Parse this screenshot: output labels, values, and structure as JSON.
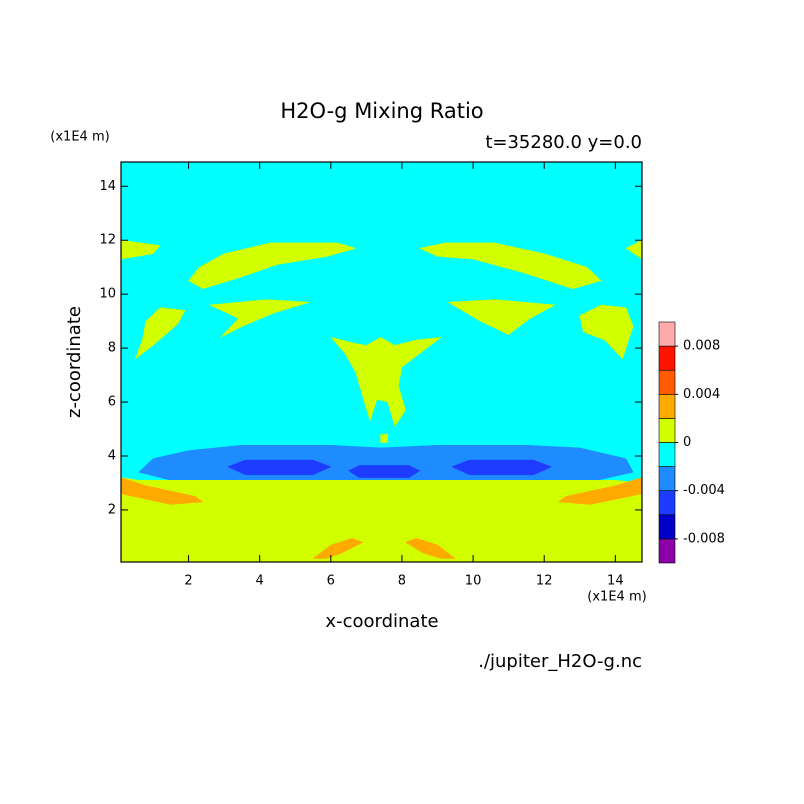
{
  "chart_data": {
    "type": "contour",
    "title": "H2O-g Mixing Ratio",
    "subtitle": "t=35280.0 y=0.0",
    "x_label": "x-coordinate",
    "y_label": "z-coordinate",
    "x_unit": "(x1E4 m)",
    "y_unit": "(x1E4 m)",
    "source": "./jupiter_H2O-g.nc",
    "xlim": [
      0.1,
      14.75
    ],
    "ylim": [
      0.07,
      14.9
    ],
    "xticks": [
      2,
      4,
      6,
      8,
      10,
      12,
      14
    ],
    "yticks": [
      2,
      4,
      6,
      8,
      10,
      12,
      14
    ],
    "levels": [
      -0.01,
      -0.008,
      -0.006,
      -0.004,
      -0.002,
      0,
      0.002,
      0.004,
      0.006,
      0.008,
      0.01
    ],
    "colors": [
      "#8c00a8",
      "#0000c8",
      "#1e3cff",
      "#1e8cff",
      "#00ffff",
      "#d2ff00",
      "#ffaa00",
      "#ff5a00",
      "#ff1400",
      "#ffaaaa"
    ],
    "colorbar_ticks": [
      0.008,
      0.004,
      0,
      -0.004,
      -0.008
    ],
    "regions": [
      {
        "level": -0.002,
        "points": [
          [
            0.1,
            0.07
          ],
          [
            14.75,
            0.07
          ],
          [
            14.75,
            14.9
          ],
          [
            0.1,
            14.9
          ]
        ]
      },
      {
        "level": -0.004,
        "points": [
          [
            0.6,
            3.4
          ],
          [
            1.0,
            3.9
          ],
          [
            2.0,
            4.2
          ],
          [
            3.5,
            4.4
          ],
          [
            6.0,
            4.4
          ],
          [
            7.4,
            4.3
          ],
          [
            9.0,
            4.4
          ],
          [
            11.5,
            4.4
          ],
          [
            13.0,
            4.3
          ],
          [
            14.3,
            3.9
          ],
          [
            14.5,
            3.4
          ],
          [
            13.5,
            3.1
          ],
          [
            11.0,
            3.0
          ],
          [
            9.0,
            3.0
          ],
          [
            7.4,
            2.9
          ],
          [
            6.0,
            3.0
          ],
          [
            3.0,
            3.0
          ],
          [
            1.5,
            3.1
          ]
        ]
      },
      {
        "level": -0.006,
        "points": [
          [
            3.1,
            3.6
          ],
          [
            3.6,
            3.85
          ],
          [
            5.5,
            3.85
          ],
          [
            6.0,
            3.6
          ],
          [
            5.5,
            3.3
          ],
          [
            3.6,
            3.3
          ]
        ]
      },
      {
        "level": -0.006,
        "points": [
          [
            9.4,
            3.6
          ],
          [
            9.9,
            3.85
          ],
          [
            11.7,
            3.85
          ],
          [
            12.2,
            3.6
          ],
          [
            11.7,
            3.3
          ],
          [
            9.9,
            3.3
          ]
        ]
      },
      {
        "level": -0.006,
        "points": [
          [
            6.5,
            3.45
          ],
          [
            6.8,
            3.65
          ],
          [
            8.2,
            3.65
          ],
          [
            8.5,
            3.45
          ],
          [
            8.2,
            3.2
          ],
          [
            6.8,
            3.2
          ]
        ]
      },
      {
        "level": 0,
        "points": [
          [
            0.1,
            0.07
          ],
          [
            14.75,
            0.07
          ],
          [
            14.75,
            3.0
          ],
          [
            14.0,
            3.1
          ],
          [
            0.6,
            3.1
          ],
          [
            0.1,
            3.2
          ]
        ]
      },
      {
        "level": 0.002,
        "points": [
          [
            0.1,
            3.2
          ],
          [
            0.8,
            2.9
          ],
          [
            2.2,
            2.5
          ],
          [
            2.4,
            2.3
          ],
          [
            1.5,
            2.2
          ],
          [
            0.1,
            2.6
          ]
        ]
      },
      {
        "level": 0.002,
        "points": [
          [
            14.75,
            3.2
          ],
          [
            14.0,
            2.9
          ],
          [
            12.6,
            2.5
          ],
          [
            12.4,
            2.3
          ],
          [
            13.3,
            2.2
          ],
          [
            14.75,
            2.6
          ]
        ]
      },
      {
        "level": 0.002,
        "points": [
          [
            5.5,
            0.2
          ],
          [
            6.0,
            0.7
          ],
          [
            6.6,
            0.95
          ],
          [
            6.9,
            0.8
          ],
          [
            6.3,
            0.4
          ],
          [
            5.9,
            0.2
          ]
        ]
      },
      {
        "level": 0.002,
        "points": [
          [
            8.1,
            0.8
          ],
          [
            8.4,
            0.95
          ],
          [
            9.0,
            0.7
          ],
          [
            9.5,
            0.2
          ],
          [
            9.1,
            0.2
          ],
          [
            8.6,
            0.4
          ]
        ]
      },
      {
        "level": 0,
        "points": [
          [
            0.1,
            12.0
          ],
          [
            1.2,
            11.8
          ],
          [
            1.0,
            11.5
          ],
          [
            0.1,
            11.3
          ]
        ]
      },
      {
        "level": 0,
        "points": [
          [
            2.3,
            11.0
          ],
          [
            3.0,
            11.5
          ],
          [
            4.3,
            11.9
          ],
          [
            6.2,
            11.9
          ],
          [
            6.7,
            11.7
          ],
          [
            5.9,
            11.4
          ],
          [
            4.5,
            11.1
          ],
          [
            3.4,
            10.6
          ],
          [
            2.4,
            10.2
          ],
          [
            2.0,
            10.5
          ]
        ]
      },
      {
        "level": 0,
        "points": [
          [
            2.6,
            9.6
          ],
          [
            4.2,
            9.8
          ],
          [
            5.4,
            9.7
          ],
          [
            4.4,
            9.3
          ],
          [
            3.5,
            8.8
          ],
          [
            2.9,
            8.4
          ],
          [
            3.4,
            9.1
          ]
        ]
      },
      {
        "level": 0,
        "points": [
          [
            0.8,
            9.0
          ],
          [
            1.2,
            9.5
          ],
          [
            1.9,
            9.4
          ],
          [
            1.7,
            8.9
          ],
          [
            1.0,
            8.1
          ],
          [
            0.5,
            7.6
          ],
          [
            0.7,
            8.3
          ]
        ]
      },
      {
        "level": 0,
        "points": [
          [
            6.0,
            8.4
          ],
          [
            6.6,
            8.2
          ],
          [
            7.0,
            8.1
          ],
          [
            7.4,
            8.4
          ],
          [
            7.8,
            8.1
          ],
          [
            8.4,
            8.3
          ],
          [
            9.1,
            8.4
          ],
          [
            8.6,
            7.9
          ],
          [
            8.0,
            7.3
          ],
          [
            7.9,
            6.6
          ],
          [
            8.1,
            5.7
          ],
          [
            7.8,
            5.1
          ],
          [
            7.6,
            6.0
          ],
          [
            7.3,
            6.1
          ],
          [
            7.1,
            5.3
          ],
          [
            6.9,
            6.2
          ],
          [
            6.7,
            7.1
          ],
          [
            6.4,
            7.8
          ]
        ]
      },
      {
        "level": 0,
        "points": [
          [
            7.4,
            4.5
          ],
          [
            7.6,
            4.5
          ],
          [
            7.6,
            4.8
          ],
          [
            7.4,
            4.8
          ]
        ]
      },
      {
        "level": 0,
        "points": [
          [
            14.3,
            11.7
          ],
          [
            14.75,
            12.0
          ],
          [
            14.75,
            11.3
          ]
        ]
      },
      {
        "level": 0,
        "points": [
          [
            8.5,
            11.7
          ],
          [
            9.2,
            11.9
          ],
          [
            10.6,
            11.9
          ],
          [
            12.0,
            11.5
          ],
          [
            13.2,
            11.0
          ],
          [
            13.6,
            10.5
          ],
          [
            12.8,
            10.2
          ],
          [
            11.4,
            10.8
          ],
          [
            10.0,
            11.3
          ],
          [
            9.0,
            11.4
          ]
        ]
      },
      {
        "level": 0,
        "points": [
          [
            9.3,
            9.7
          ],
          [
            10.6,
            9.8
          ],
          [
            12.3,
            9.6
          ],
          [
            11.6,
            9.1
          ],
          [
            11.0,
            8.5
          ],
          [
            10.2,
            9.0
          ]
        ]
      },
      {
        "level": 0,
        "points": [
          [
            13.0,
            9.2
          ],
          [
            13.6,
            9.6
          ],
          [
            14.3,
            9.5
          ],
          [
            14.5,
            8.8
          ],
          [
            14.2,
            7.6
          ],
          [
            13.7,
            8.3
          ],
          [
            13.1,
            8.6
          ]
        ]
      }
    ]
  }
}
